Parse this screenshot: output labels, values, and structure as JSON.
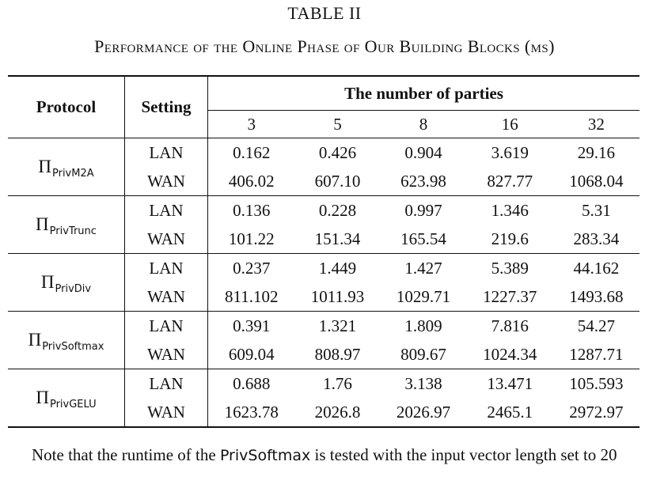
{
  "table": {
    "number": "TABLE II",
    "caption": "Performance of the Online Phase of Our Building Blocks (ms)",
    "header": {
      "protocol": "Protocol",
      "setting": "Setting",
      "parties_group": "The number of parties",
      "parties": [
        "3",
        "5",
        "8",
        "16",
        "32"
      ]
    },
    "protocols": [
      {
        "symbol": "Π",
        "subscript": "PrivM2A",
        "rows": [
          {
            "setting": "LAN",
            "values": [
              "0.162",
              "0.426",
              "0.904",
              "3.619",
              "29.16"
            ]
          },
          {
            "setting": "WAN",
            "values": [
              "406.02",
              "607.10",
              "623.98",
              "827.77",
              "1068.04"
            ]
          }
        ]
      },
      {
        "symbol": "Π",
        "subscript": "PrivTrunc",
        "rows": [
          {
            "setting": "LAN",
            "values": [
              "0.136",
              "0.228",
              "0.997",
              "1.346",
              "5.31"
            ]
          },
          {
            "setting": "WAN",
            "values": [
              "101.22",
              "151.34",
              "165.54",
              "219.6",
              "283.34"
            ]
          }
        ]
      },
      {
        "symbol": "Π",
        "subscript": "PrivDiv",
        "rows": [
          {
            "setting": "LAN",
            "values": [
              "0.237",
              "1.449",
              "1.427",
              "5.389",
              "44.162"
            ]
          },
          {
            "setting": "WAN",
            "values": [
              "811.102",
              "1011.93",
              "1029.71",
              "1227.37",
              "1493.68"
            ]
          }
        ]
      },
      {
        "symbol": "Π",
        "subscript": "PrivSoftmax",
        "rows": [
          {
            "setting": "LAN",
            "values": [
              "0.391",
              "1.321",
              "1.809",
              "7.816",
              "54.27"
            ]
          },
          {
            "setting": "WAN",
            "values": [
              "609.04",
              "808.97",
              "809.67",
              "1024.34",
              "1287.71"
            ]
          }
        ]
      },
      {
        "symbol": "Π",
        "subscript": "PrivGELU",
        "rows": [
          {
            "setting": "LAN",
            "values": [
              "0.688",
              "1.76",
              "3.138",
              "13.471",
              "105.593"
            ]
          },
          {
            "setting": "WAN",
            "values": [
              "1623.78",
              "2026.8",
              "2026.97",
              "2465.1",
              "2972.97"
            ]
          }
        ]
      }
    ]
  },
  "note": {
    "before": "Note that the runtime of the ",
    "code": "PrivSoftmax",
    "after": " is tested with the input vector length set to 20"
  }
}
